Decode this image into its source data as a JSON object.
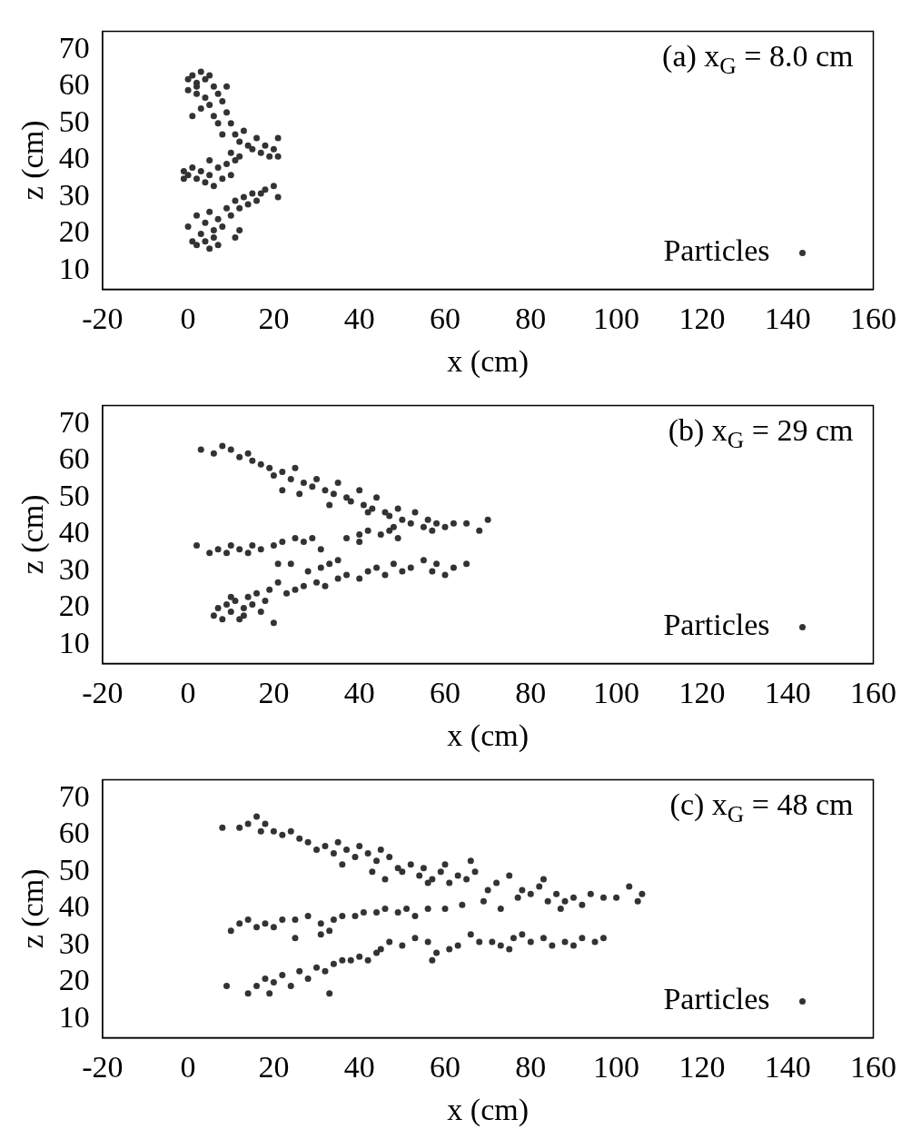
{
  "chart_data": [
    {
      "type": "scatter",
      "xlabel": "x (cm)",
      "ylabel": "z (cm)",
      "xlim": [
        -20,
        160
      ],
      "xticks": [
        -20,
        0,
        20,
        40,
        60,
        80,
        100,
        120,
        140,
        160
      ],
      "ylim": [
        5,
        75
      ],
      "yticks": [
        10,
        20,
        30,
        40,
        50,
        60,
        70
      ],
      "legend": "bottom right",
      "marker": "circle",
      "grid": false,
      "annotations": [
        "(a) x$_{G}$ = 8.0 cm"
      ],
      "series": [
        {
          "name": "Particles",
          "color": "#333333",
          "x": [
            0,
            1,
            2,
            3,
            4,
            5,
            6,
            0,
            2,
            4,
            5,
            7,
            8,
            6,
            9,
            7,
            10,
            8,
            11,
            12,
            13,
            14,
            15,
            16,
            17,
            18,
            19,
            20,
            21,
            21,
            10,
            12,
            1,
            3,
            9,
            2,
            -1,
            0,
            1,
            2,
            3,
            4,
            5,
            6,
            7,
            8,
            9,
            10,
            11,
            5,
            -1,
            0,
            1,
            2,
            3,
            4,
            5,
            6,
            7,
            2,
            4,
            5,
            7,
            8,
            9,
            10,
            11,
            12,
            13,
            14,
            15,
            16,
            17,
            18,
            20,
            21,
            12,
            11,
            6
          ],
          "values": [
            62,
            63,
            61,
            64,
            62,
            63,
            60,
            59,
            58,
            57,
            55,
            58,
            56,
            52,
            53,
            50,
            50,
            47,
            47,
            45,
            48,
            44,
            43,
            46,
            42,
            44,
            41,
            43,
            46,
            41,
            42,
            41,
            52,
            54,
            60,
            60,
            37,
            36,
            38,
            35,
            37,
            34,
            36,
            33,
            38,
            35,
            39,
            36,
            40,
            40,
            35,
            22,
            18,
            17,
            20,
            18,
            16,
            19,
            17,
            25,
            23,
            26,
            24,
            22,
            27,
            25,
            29,
            27,
            30,
            28,
            31,
            29,
            31,
            32,
            33,
            30,
            21,
            19,
            21
          ]
        }
      ]
    },
    {
      "type": "scatter",
      "xlabel": "x (cm)",
      "ylabel": "z (cm)",
      "xlim": [
        -20,
        160
      ],
      "xticks": [
        -20,
        0,
        20,
        40,
        60,
        80,
        100,
        120,
        140,
        160
      ],
      "ylim": [
        5,
        75
      ],
      "yticks": [
        10,
        20,
        30,
        40,
        50,
        60,
        70
      ],
      "legend": "bottom right",
      "marker": "circle",
      "grid": false,
      "annotations": [
        "(b) x$_{G}$ = 29 cm"
      ],
      "series": [
        {
          "name": "Particles",
          "color": "#333333",
          "x": [
            3,
            6,
            8,
            10,
            12,
            14,
            15,
            17,
            19,
            20,
            22,
            24,
            25,
            27,
            29,
            30,
            32,
            34,
            35,
            37,
            38,
            40,
            41,
            43,
            44,
            46,
            47,
            49,
            50,
            52,
            53,
            55,
            56,
            58,
            60,
            62,
            65,
            68,
            70,
            22,
            26,
            33,
            42,
            48,
            57,
            2,
            5,
            7,
            9,
            10,
            12,
            14,
            15,
            17,
            20,
            22,
            25,
            27,
            29,
            31,
            37,
            40,
            42,
            45,
            47,
            49,
            21,
            24,
            28,
            31,
            33,
            35,
            40,
            6,
            7,
            8,
            9,
            10,
            11,
            12,
            13,
            14,
            15,
            16,
            17,
            18,
            19,
            20,
            21,
            23,
            25,
            27,
            30,
            32,
            35,
            37,
            40,
            42,
            44,
            46,
            48,
            50,
            52,
            55,
            57,
            60,
            62,
            65,
            58,
            13,
            10
          ],
          "values": [
            63,
            62,
            64,
            63,
            61,
            62,
            60,
            59,
            58,
            56,
            57,
            55,
            58,
            54,
            53,
            55,
            52,
            51,
            54,
            50,
            49,
            52,
            48,
            47,
            50,
            46,
            45,
            47,
            44,
            43,
            46,
            42,
            44,
            43,
            42,
            43,
            43,
            41,
            44,
            52,
            51,
            48,
            46,
            42,
            41,
            37,
            35,
            36,
            35,
            37,
            36,
            35,
            37,
            36,
            37,
            38,
            39,
            38,
            39,
            36,
            39,
            40,
            41,
            40,
            41,
            39,
            32,
            32,
            30,
            31,
            32,
            33,
            38,
            18,
            20,
            17,
            21,
            19,
            22,
            17,
            20,
            23,
            21,
            24,
            19,
            22,
            25,
            16,
            27,
            24,
            25,
            26,
            27,
            26,
            28,
            29,
            28,
            30,
            31,
            29,
            32,
            30,
            31,
            33,
            30,
            29,
            31,
            32,
            32,
            18,
            23
          ]
        }
      ]
    },
    {
      "type": "scatter",
      "xlabel": "x (cm)",
      "ylabel": "z (cm)",
      "xlim": [
        -20,
        160
      ],
      "xticks": [
        -20,
        0,
        20,
        40,
        60,
        80,
        100,
        120,
        140,
        160
      ],
      "ylim": [
        5,
        75
      ],
      "yticks": [
        10,
        20,
        30,
        40,
        50,
        60,
        70
      ],
      "legend": "bottom right",
      "marker": "circle",
      "grid": false,
      "annotations": [
        "(c) x$_{G}$ = 48 cm"
      ],
      "series": [
        {
          "name": "Particles",
          "color": "#333333",
          "x": [
            8,
            12,
            14,
            16,
            17,
            18,
            20,
            22,
            24,
            26,
            28,
            30,
            32,
            34,
            35,
            37,
            39,
            40,
            42,
            44,
            45,
            47,
            49,
            50,
            52,
            54,
            55,
            57,
            59,
            61,
            63,
            65,
            66,
            67,
            60,
            56,
            43,
            36,
            46,
            70,
            72,
            75,
            77,
            78,
            80,
            82,
            84,
            86,
            88,
            90,
            92,
            94,
            97,
            100,
            103,
            105,
            106,
            69,
            73,
            87,
            83,
            10,
            12,
            14,
            16,
            18,
            20,
            22,
            25,
            28,
            31,
            34,
            36,
            39,
            41,
            44,
            46,
            49,
            51,
            53,
            56,
            60,
            64,
            25,
            31,
            33,
            9,
            14,
            16,
            18,
            19,
            20,
            22,
            24,
            26,
            28,
            30,
            32,
            33,
            34,
            36,
            38,
            40,
            42,
            44,
            45,
            47,
            50,
            53,
            56,
            58,
            61,
            63,
            66,
            68,
            71,
            73,
            76,
            78,
            80,
            83,
            85,
            88,
            90,
            92,
            95,
            97,
            57,
            75
          ],
          "values": [
            62,
            62,
            63,
            65,
            61,
            63,
            61,
            60,
            61,
            59,
            58,
            56,
            57,
            55,
            58,
            56,
            54,
            57,
            55,
            53,
            56,
            54,
            51,
            50,
            52,
            49,
            51,
            48,
            50,
            47,
            49,
            48,
            53,
            50,
            52,
            47,
            50,
            52,
            48,
            45,
            47,
            49,
            43,
            45,
            44,
            46,
            42,
            44,
            42,
            43,
            41,
            44,
            43,
            43,
            46,
            42,
            44,
            42,
            40,
            40,
            48,
            34,
            36,
            37,
            35,
            36,
            35,
            37,
            37,
            38,
            36,
            37,
            38,
            38,
            39,
            39,
            40,
            39,
            40,
            38,
            40,
            40,
            41,
            32,
            33,
            34,
            19,
            17,
            19,
            21,
            17,
            20,
            22,
            19,
            23,
            21,
            24,
            23,
            17,
            25,
            26,
            26,
            27,
            26,
            28,
            29,
            31,
            30,
            32,
            31,
            28,
            29,
            30,
            33,
            31,
            31,
            30,
            32,
            33,
            31,
            32,
            30,
            31,
            30,
            32,
            31,
            32,
            26,
            29
          ]
        }
      ]
    }
  ]
}
